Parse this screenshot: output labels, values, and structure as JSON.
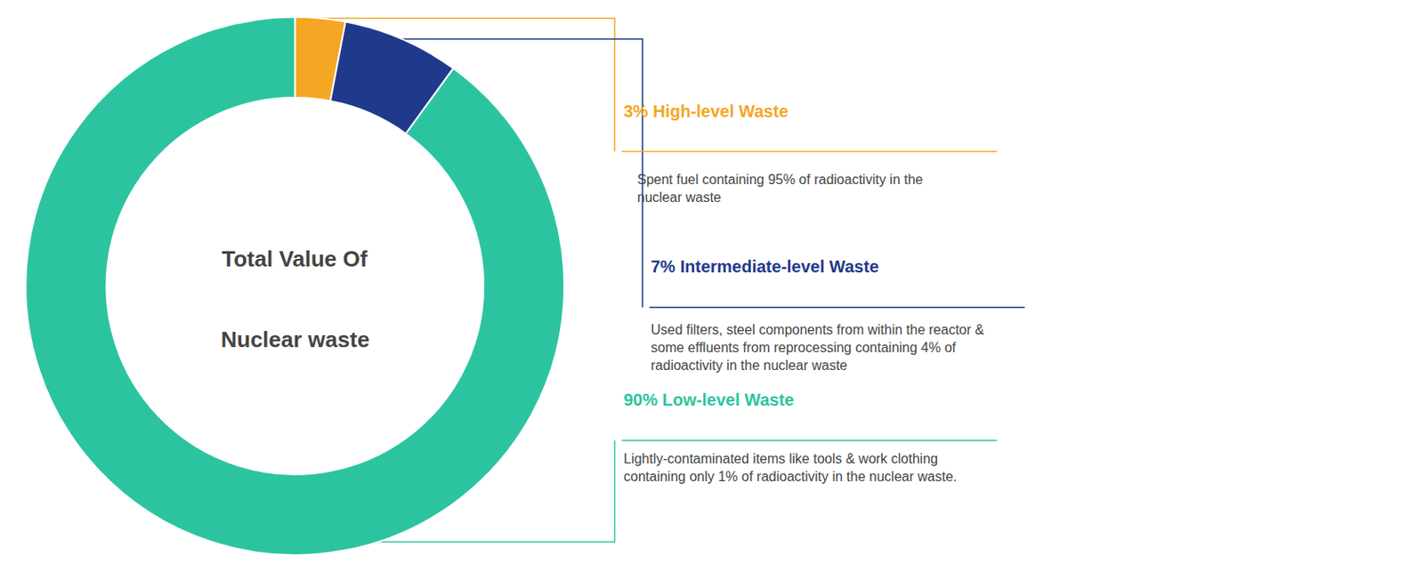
{
  "chart_data": {
    "type": "donut",
    "categories": [
      "3% High-level Waste",
      "7% Intermediate-level Waste",
      "90% Low-level Waste"
    ],
    "values": [
      3,
      7,
      90
    ],
    "colors": [
      "#F5A623",
      "#1F3A8A",
      "#2CC4A0"
    ],
    "annotations": [
      "Total Value Of",
      "Nuclear waste"
    ],
    "descriptions": [
      "Spent fuel containing 95% of radioactivity in the\nnuclear waste",
      "Used filters, steel components from within the reactor &\nsome effluents from reprocessing containing 4% of\nradioactivity in the nuclear waste",
      "Lightly-contaminated items like tools & work clothing\ncontaining only 1% of radioactivity in the nuclear waste."
    ]
  }
}
